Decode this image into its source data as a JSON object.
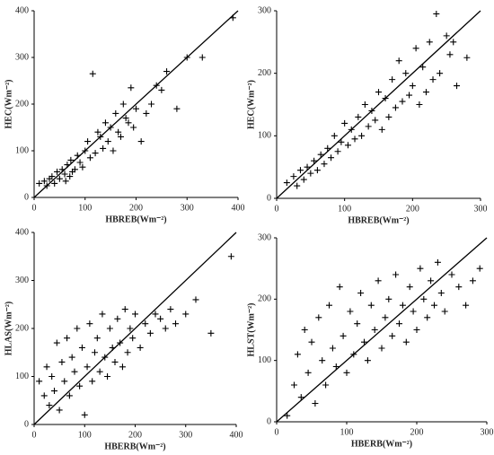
{
  "chart_data": [
    {
      "type": "scatter",
      "xlabel": "HBREB(Wm⁻²)",
      "ylabel": "HEC(Wm⁻²)",
      "color": "#000000",
      "x": [
        10,
        20,
        25,
        30,
        35,
        40,
        45,
        50,
        55,
        60,
        62,
        65,
        70,
        72,
        75,
        80,
        85,
        90,
        95,
        100,
        105,
        110,
        115,
        120,
        125,
        130,
        135,
        140,
        145,
        150,
        155,
        160,
        165,
        170,
        175,
        180,
        185,
        190,
        195,
        200,
        210,
        220,
        230,
        240,
        250,
        260,
        280,
        300,
        330,
        390
      ],
      "values": [
        30,
        35,
        25,
        40,
        45,
        30,
        55,
        40,
        60,
        50,
        35,
        70,
        45,
        80,
        55,
        60,
        90,
        75,
        65,
        100,
        120,
        85,
        265,
        95,
        140,
        130,
        105,
        160,
        120,
        150,
        100,
        180,
        140,
        130,
        200,
        170,
        160,
        235,
        150,
        190,
        120,
        180,
        200,
        240,
        230,
        270,
        190,
        300,
        300,
        385
      ],
      "xlim": [
        0,
        400
      ],
      "ylim": [
        0,
        400
      ],
      "xticks": [
        0,
        100,
        200,
        300,
        400
      ],
      "yticks": [
        0,
        100,
        200,
        300,
        400
      ]
    },
    {
      "type": "scatter",
      "xlabel": "HBREB(Wm⁻²)",
      "ylabel": "HEC(Wm⁻²)",
      "color": "#000000",
      "x": [
        15,
        25,
        30,
        35,
        40,
        45,
        50,
        55,
        60,
        65,
        70,
        75,
        80,
        85,
        90,
        95,
        100,
        105,
        110,
        115,
        120,
        125,
        130,
        135,
        140,
        145,
        150,
        155,
        160,
        165,
        170,
        175,
        180,
        185,
        190,
        195,
        200,
        205,
        210,
        215,
        220,
        225,
        230,
        235,
        240,
        250,
        255,
        260,
        265,
        280
      ],
      "values": [
        25,
        35,
        20,
        45,
        30,
        50,
        40,
        60,
        45,
        70,
        55,
        80,
        65,
        100,
        75,
        90,
        120,
        85,
        110,
        95,
        130,
        100,
        150,
        115,
        140,
        125,
        170,
        110,
        160,
        130,
        190,
        145,
        220,
        155,
        200,
        165,
        180,
        240,
        150,
        210,
        170,
        250,
        190,
        295,
        200,
        260,
        230,
        250,
        180,
        225
      ],
      "xlim": [
        0,
        300
      ],
      "ylim": [
        0,
        300
      ],
      "xticks": [
        0,
        100,
        200,
        300
      ],
      "yticks": [
        0,
        100,
        200,
        300
      ]
    },
    {
      "type": "scatter",
      "xlabel": "HBERB(Wm⁻²)",
      "ylabel": "HLAS(Wm⁻²)",
      "color": "#000000",
      "x": [
        10,
        20,
        25,
        30,
        35,
        40,
        45,
        50,
        55,
        60,
        65,
        70,
        75,
        80,
        85,
        90,
        95,
        100,
        105,
        110,
        115,
        120,
        125,
        130,
        135,
        140,
        145,
        150,
        155,
        160,
        165,
        170,
        175,
        180,
        185,
        190,
        195,
        200,
        210,
        220,
        230,
        240,
        250,
        260,
        270,
        280,
        300,
        320,
        350,
        390
      ],
      "values": [
        90,
        60,
        120,
        40,
        100,
        70,
        170,
        30,
        130,
        90,
        180,
        60,
        140,
        110,
        200,
        80,
        160,
        20,
        120,
        210,
        90,
        150,
        180,
        110,
        230,
        140,
        100,
        200,
        160,
        130,
        220,
        170,
        120,
        240,
        150,
        200,
        180,
        230,
        160,
        210,
        190,
        230,
        220,
        200,
        240,
        210,
        230,
        260,
        190,
        350
      ],
      "xlim": [
        0,
        400
      ],
      "ylim": [
        0,
        400
      ],
      "xticks": [
        0,
        100,
        200,
        300,
        400
      ],
      "yticks": [
        0,
        100,
        200,
        300,
        400
      ]
    },
    {
      "type": "scatter",
      "xlabel": "HBERB(Wm⁻²)",
      "ylabel": "HLST(Wm⁻²)",
      "color": "#000000",
      "x": [
        15,
        25,
        30,
        35,
        40,
        45,
        50,
        55,
        60,
        65,
        70,
        75,
        80,
        85,
        90,
        95,
        100,
        105,
        110,
        115,
        120,
        125,
        130,
        135,
        140,
        145,
        150,
        155,
        160,
        165,
        170,
        175,
        180,
        185,
        190,
        195,
        200,
        205,
        210,
        215,
        220,
        225,
        230,
        235,
        240,
        250,
        260,
        270,
        280,
        290
      ],
      "values": [
        10,
        60,
        110,
        40,
        150,
        80,
        130,
        30,
        170,
        100,
        60,
        190,
        120,
        90,
        220,
        140,
        80,
        180,
        110,
        160,
        210,
        130,
        100,
        190,
        150,
        230,
        120,
        170,
        200,
        140,
        240,
        160,
        190,
        130,
        220,
        180,
        150,
        250,
        200,
        170,
        230,
        190,
        260,
        210,
        180,
        240,
        220,
        190,
        230,
        250
      ],
      "xlim": [
        0,
        300
      ],
      "ylim": [
        0,
        300
      ],
      "xticks": [
        0,
        100,
        200,
        300
      ],
      "yticks": [
        0,
        100,
        200,
        300
      ]
    }
  ]
}
